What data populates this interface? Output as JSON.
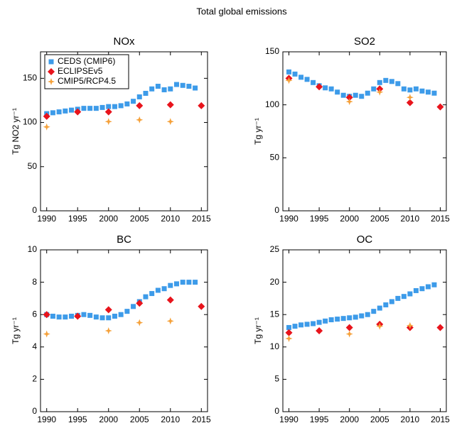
{
  "title": "Total global emissions",
  "chart_data": [
    {
      "type": "scatter",
      "title": "NOx",
      "ylabel": "Tg NO2 yr⁻¹",
      "xlim": [
        1989,
        2016
      ],
      "xticks": [
        1990,
        1995,
        2000,
        2005,
        2010,
        2015
      ],
      "ylim": [
        0,
        180
      ],
      "yticks": [
        0,
        50,
        100,
        150
      ],
      "legend": "upper-left",
      "series": [
        {
          "name": "CEDS (CMIP6)",
          "color": "#3d9be9",
          "marker": "square",
          "x": [
            1990,
            1991,
            1992,
            1993,
            1994,
            1995,
            1996,
            1997,
            1998,
            1999,
            2000,
            2001,
            2002,
            2003,
            2004,
            2005,
            2006,
            2007,
            2008,
            2009,
            2010,
            2011,
            2012,
            2013,
            2014
          ],
          "values": [
            110,
            111,
            112,
            113,
            114,
            115,
            116,
            116,
            116,
            117,
            118,
            118,
            119,
            121,
            124,
            129,
            133,
            138,
            141,
            137,
            138,
            143,
            142,
            141,
            139
          ]
        },
        {
          "name": "ECLIPSEv5",
          "color": "#e8141c",
          "marker": "diamond",
          "x": [
            1990,
            1995,
            2000,
            2005,
            2010,
            2015
          ],
          "values": [
            107,
            112,
            112,
            119,
            120,
            119
          ]
        },
        {
          "name": "CMIP5/RCP4.5",
          "color": "#f5a13a",
          "marker": "plus",
          "x": [
            1990,
            2000,
            2005,
            2010
          ],
          "values": [
            95,
            101,
            103,
            101
          ]
        }
      ]
    },
    {
      "type": "scatter",
      "title": "SO2",
      "ylabel": "Tg yr⁻¹",
      "xlim": [
        1989,
        2016
      ],
      "xticks": [
        1990,
        1995,
        2000,
        2005,
        2010,
        2015
      ],
      "ylim": [
        0,
        150
      ],
      "yticks": [
        0,
        50,
        100,
        150
      ],
      "legend": "none",
      "series": [
        {
          "name": "CEDS (CMIP6)",
          "color": "#3d9be9",
          "marker": "square",
          "x": [
            1990,
            1991,
            1992,
            1993,
            1994,
            1995,
            1996,
            1997,
            1998,
            1999,
            2000,
            2001,
            2002,
            2003,
            2004,
            2005,
            2006,
            2007,
            2008,
            2009,
            2010,
            2011,
            2012,
            2013,
            2014
          ],
          "values": [
            131,
            129,
            126,
            124,
            121,
            118,
            116,
            115,
            112,
            109,
            108,
            109,
            108,
            111,
            115,
            121,
            123,
            122,
            120,
            115,
            114,
            115,
            113,
            112,
            111
          ]
        },
        {
          "name": "ECLIPSEv5",
          "color": "#e8141c",
          "marker": "diamond",
          "x": [
            1990,
            1995,
            2000,
            2005,
            2010,
            2015
          ],
          "values": [
            125,
            117,
            107,
            115,
            102,
            98
          ]
        },
        {
          "name": "CMIP5/RCP4.5",
          "color": "#f5a13a",
          "marker": "plus",
          "x": [
            1990,
            2000,
            2005,
            2010
          ],
          "values": [
            123,
            103,
            112,
            107
          ]
        }
      ]
    },
    {
      "type": "scatter",
      "title": "BC",
      "ylabel": "Tg yr⁻¹",
      "xlim": [
        1989,
        2016
      ],
      "xticks": [
        1990,
        1995,
        2000,
        2005,
        2010,
        2015
      ],
      "ylim": [
        0,
        10
      ],
      "yticks": [
        0,
        2,
        4,
        6,
        8,
        10
      ],
      "legend": "none",
      "series": [
        {
          "name": "CEDS (CMIP6)",
          "color": "#3d9be9",
          "marker": "square",
          "x": [
            1990,
            1991,
            1992,
            1993,
            1994,
            1995,
            1996,
            1997,
            1998,
            1999,
            2000,
            2001,
            2002,
            2003,
            2004,
            2005,
            2006,
            2007,
            2008,
            2009,
            2010,
            2011,
            2012,
            2013,
            2014
          ],
          "values": [
            6.0,
            5.9,
            5.85,
            5.85,
            5.9,
            5.95,
            6.0,
            5.95,
            5.85,
            5.8,
            5.8,
            5.9,
            6.0,
            6.2,
            6.5,
            6.8,
            7.1,
            7.3,
            7.5,
            7.6,
            7.8,
            7.9,
            8.0,
            8.0,
            8.0
          ]
        },
        {
          "name": "ECLIPSEv5",
          "color": "#e8141c",
          "marker": "diamond",
          "x": [
            1990,
            1995,
            2000,
            2005,
            2010,
            2015
          ],
          "values": [
            6.0,
            5.9,
            6.3,
            6.7,
            6.9,
            6.5
          ]
        },
        {
          "name": "CMIP5/RCP4.5",
          "color": "#f5a13a",
          "marker": "plus",
          "x": [
            1990,
            2000,
            2005,
            2010
          ],
          "values": [
            4.8,
            5.0,
            5.5,
            5.6
          ]
        }
      ]
    },
    {
      "type": "scatter",
      "title": "OC",
      "ylabel": "Tg yr⁻¹",
      "xlim": [
        1989,
        2016
      ],
      "xticks": [
        1990,
        1995,
        2000,
        2005,
        2010,
        2015
      ],
      "ylim": [
        0,
        25
      ],
      "yticks": [
        0,
        5,
        10,
        15,
        20,
        25
      ],
      "legend": "none",
      "series": [
        {
          "name": "CEDS (CMIP6)",
          "color": "#3d9be9",
          "marker": "square",
          "x": [
            1990,
            1991,
            1992,
            1993,
            1994,
            1995,
            1996,
            1997,
            1998,
            1999,
            2000,
            2001,
            2002,
            2003,
            2004,
            2005,
            2006,
            2007,
            2008,
            2009,
            2010,
            2011,
            2012,
            2013,
            2014
          ],
          "values": [
            13.0,
            13.2,
            13.4,
            13.5,
            13.6,
            13.8,
            14.0,
            14.2,
            14.3,
            14.4,
            14.5,
            14.6,
            14.8,
            15.0,
            15.5,
            16.0,
            16.5,
            17.0,
            17.5,
            17.8,
            18.2,
            18.7,
            19.0,
            19.3,
            19.6
          ]
        },
        {
          "name": "ECLIPSEv5",
          "color": "#e8141c",
          "marker": "diamond",
          "x": [
            1990,
            1995,
            2000,
            2005,
            2010,
            2015
          ],
          "values": [
            12.2,
            12.5,
            13.0,
            13.5,
            13.0,
            13.0
          ]
        },
        {
          "name": "CMIP5/RCP4.5",
          "color": "#f5a13a",
          "marker": "plus",
          "x": [
            1990,
            2000,
            2005,
            2010
          ],
          "values": [
            11.3,
            12.0,
            13.2,
            13.3
          ]
        }
      ]
    }
  ]
}
